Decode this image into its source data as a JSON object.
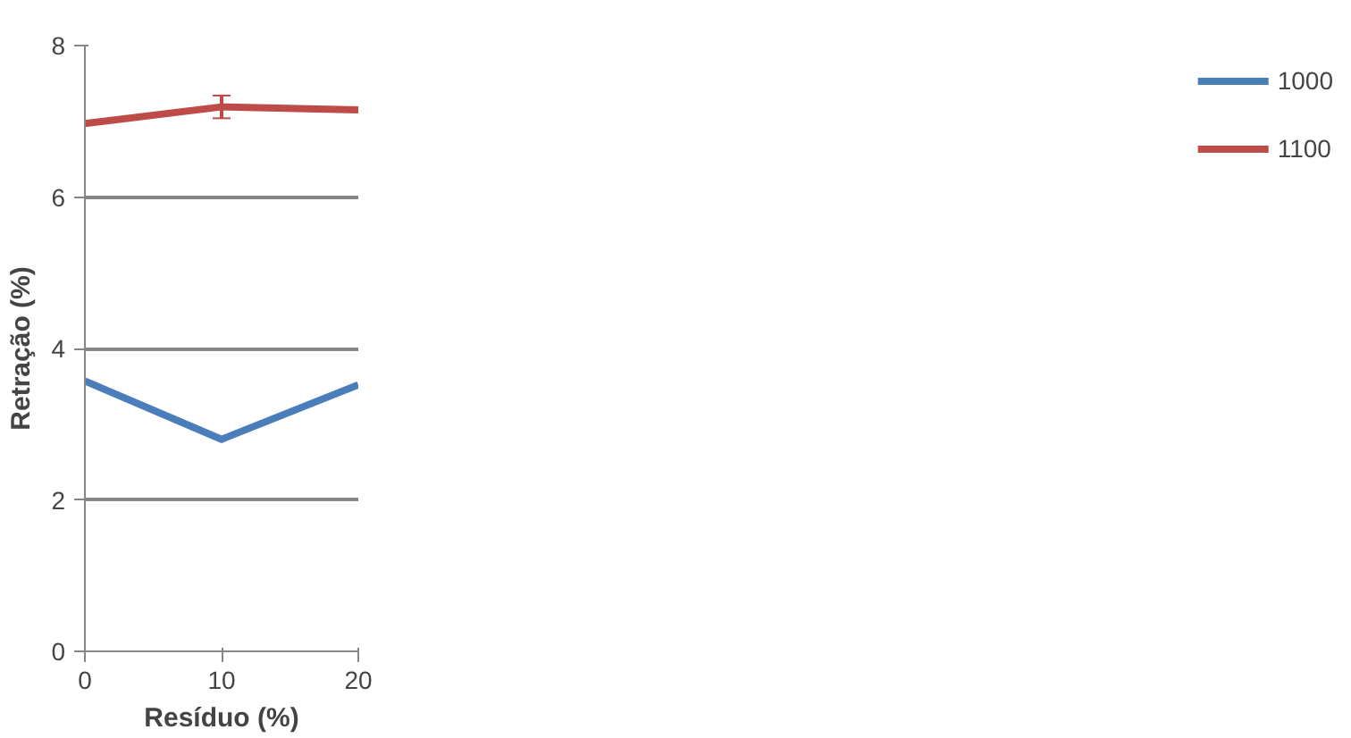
{
  "chart_data": {
    "type": "line",
    "xlabel": "Resíduo (%)",
    "ylabel": "Retração (%)",
    "x": [
      0,
      10,
      20
    ],
    "series": [
      {
        "name": "1000",
        "color": "#4a7ebb",
        "values": [
          3.57,
          2.8,
          3.52
        ]
      },
      {
        "name": "1100",
        "color": "#be4b48",
        "values": [
          6.97,
          7.19,
          7.15
        ],
        "errors": [
          null,
          0.15,
          null
        ]
      }
    ],
    "xlim": [
      0,
      20
    ],
    "xticks": [
      0,
      10,
      20
    ],
    "ylim": [
      0,
      8
    ],
    "yticks": [
      0,
      2,
      4,
      6,
      8
    ],
    "grid": "y",
    "legend": "right",
    "marker": "none",
    "line_style": "solid"
  }
}
